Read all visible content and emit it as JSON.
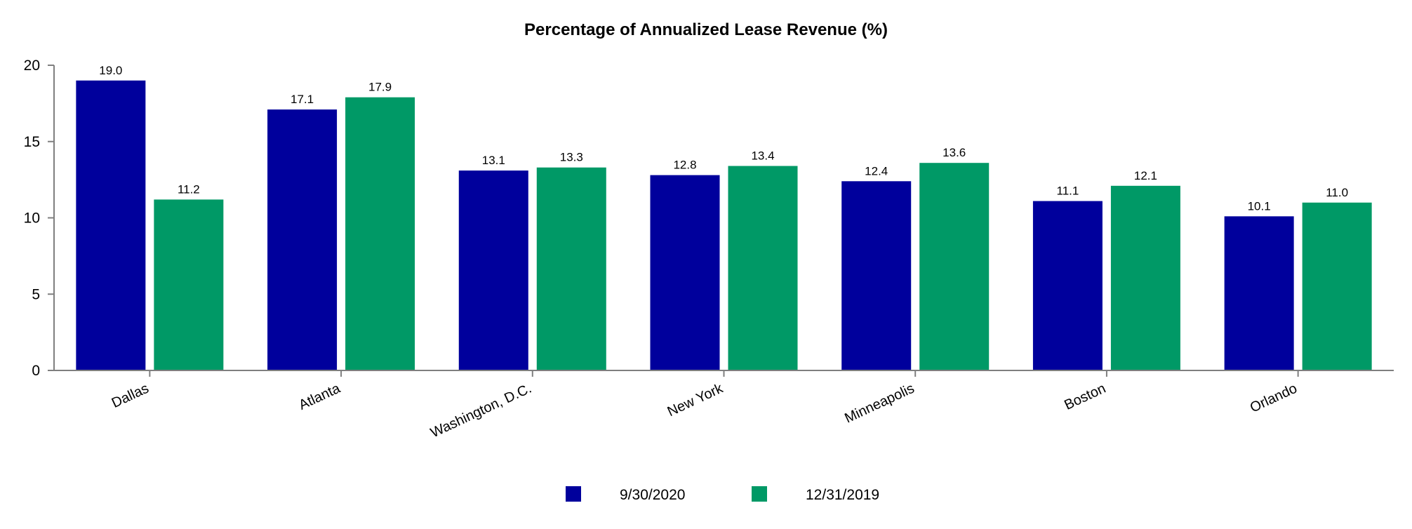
{
  "chart_data": {
    "type": "bar",
    "title": "Percentage of Annualized Lease Revenue (%)",
    "xlabel": "",
    "ylabel": "",
    "ylim": [
      0,
      20
    ],
    "yticks": [
      0,
      5,
      10,
      15,
      20
    ],
    "categories": [
      "Dallas",
      "Atlanta",
      "Washington, D.C.",
      "New York",
      "Minneapolis",
      "Boston",
      "Orlando"
    ],
    "series": [
      {
        "name": "9/30/2020",
        "color": "#00009C",
        "values": [
          19.0,
          17.1,
          13.1,
          12.8,
          12.4,
          11.1,
          10.1
        ]
      },
      {
        "name": "12/31/2019",
        "color": "#009966",
        "values": [
          11.2,
          17.9,
          13.3,
          13.4,
          13.6,
          12.1,
          11.0
        ]
      }
    ],
    "grid": false,
    "legend_position": "bottom-center"
  }
}
